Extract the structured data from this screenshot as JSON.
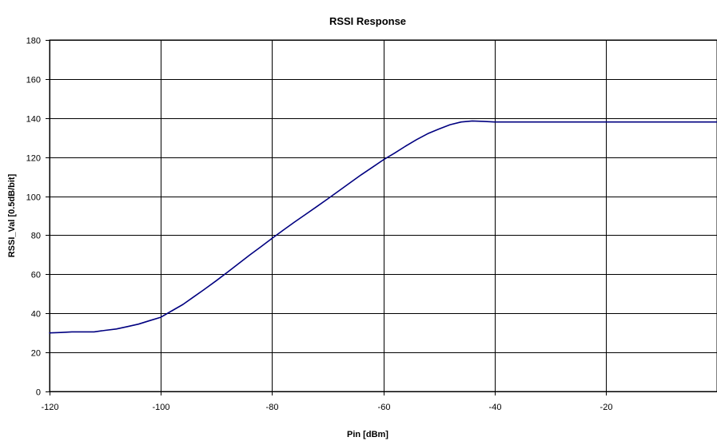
{
  "chart_data": {
    "type": "line",
    "title": "RSSI Response",
    "xlabel": "Pin [dBm]",
    "ylabel": "RSSI_Val [0.5dB/bit]",
    "xlim": [
      -120,
      0
    ],
    "ylim": [
      0,
      180
    ],
    "xticks": [
      -120,
      -100,
      -80,
      -60,
      -40,
      -20
    ],
    "yticks": [
      0,
      20,
      40,
      60,
      80,
      100,
      120,
      140,
      160,
      180
    ],
    "xtick_labels": [
      "-120",
      "-100",
      "-80",
      "-60",
      "-40",
      "-20"
    ],
    "ytick_labels": [
      "0",
      "20",
      "40",
      "60",
      "80",
      "100",
      "120",
      "140",
      "160",
      "180"
    ],
    "grid": true,
    "legend": "none",
    "series": [
      {
        "color": "#000080",
        "x": [
          -120,
          -118,
          -116,
          -114,
          -112,
          -110,
          -108,
          -106,
          -104,
          -102,
          -100,
          -98,
          -96,
          -94,
          -92,
          -90,
          -88,
          -86,
          -84,
          -82,
          -80,
          -78,
          -76,
          -74,
          -72,
          -70,
          -68,
          -66,
          -64,
          -62,
          -60,
          -58,
          -56,
          -54,
          -52,
          -50,
          -48,
          -46,
          -44,
          -42,
          -40,
          -38,
          -36,
          -34,
          -32,
          -30,
          -28,
          -26,
          -24,
          -22,
          -20,
          -18,
          -16,
          -14,
          -12,
          -10,
          -8,
          -6,
          -4,
          -2,
          0
        ],
        "y": [
          30,
          30.2,
          30.5,
          30.5,
          30.5,
          31.3,
          32,
          33.2,
          34.5,
          36.3,
          38,
          41.3,
          44.6,
          48.6,
          52.6,
          56.8,
          61.1,
          65.5,
          69.9,
          74.1,
          78.4,
          82.6,
          86.7,
          90.6,
          94.6,
          98.6,
          102.7,
          106.8,
          110.9,
          114.7,
          118.6,
          122,
          125.6,
          129,
          132,
          134.4,
          136.6,
          138,
          138.5,
          138.3,
          138,
          138,
          138,
          138,
          138,
          138,
          138,
          138,
          138,
          138,
          138,
          138,
          138,
          138,
          138,
          138,
          138,
          138,
          138,
          138,
          138
        ]
      }
    ]
  }
}
